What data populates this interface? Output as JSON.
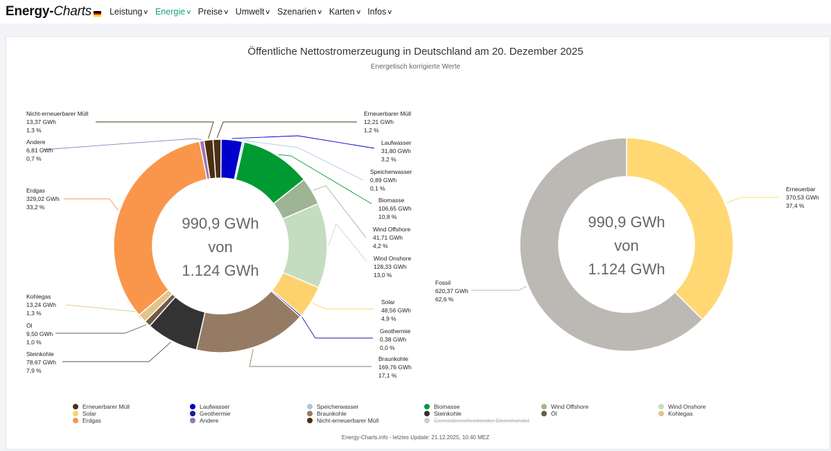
{
  "brand": {
    "name_a": "Energy-",
    "name_b": "Charts"
  },
  "nav": [
    {
      "label": "Leistung",
      "active": false
    },
    {
      "label": "Energie",
      "active": true
    },
    {
      "label": "Preise",
      "active": false
    },
    {
      "label": "Umwelt",
      "active": false
    },
    {
      "label": "Szenarien",
      "active": false
    },
    {
      "label": "Karten",
      "active": false
    },
    {
      "label": "Infos",
      "active": false
    }
  ],
  "footer": "Energy-Charts.info - letztes Update: 21.12.2025, 10:40 MEZ",
  "chart_data": [
    {
      "type": "pie",
      "title": "Öffentliche Nettostromerzeugung in Deutschland am 20. Dezember 2025",
      "subtitle": "Energetisch korrigierte Werte",
      "center": [
        "990,9 GWh",
        "von",
        "1.124 GWh"
      ],
      "slices": [
        {
          "name": "Erneuerbarer Müll",
          "value": 12.21,
          "value_label": "12,21 GWh",
          "pct_label": "1,2 %",
          "color": "#4a3019"
        },
        {
          "name": "Laufwasser",
          "value": 31.8,
          "value_label": "31,80 GWh",
          "pct_label": "3,2 %",
          "color": "#0000cc"
        },
        {
          "name": "Speicherwasser",
          "value": 0.89,
          "value_label": "0,89 GWh",
          "pct_label": "0,1 %",
          "color": "#a9c5e8"
        },
        {
          "name": "Biomasse",
          "value": 106.65,
          "value_label": "106,65 GWh",
          "pct_label": "10,8 %",
          "color": "#009a32"
        },
        {
          "name": "Wind Offshore",
          "value": 41.71,
          "value_label": "41,71 GWh",
          "pct_label": "4,2 %",
          "color": "#9eb494"
        },
        {
          "name": "Wind Onshore",
          "value": 128.33,
          "value_label": "128,33 GWh",
          "pct_label": "13,0 %",
          "color": "#c4dcbf"
        },
        {
          "name": "Solar",
          "value": 48.56,
          "value_label": "48,56 GWh",
          "pct_label": "4,9 %",
          "color": "#fdd26e"
        },
        {
          "name": "Geothermie",
          "value": 0.38,
          "value_label": "0,38 GWh",
          "pct_label": "0,0 %",
          "color": "#1d1d8c"
        },
        {
          "name": "Braunkohle",
          "value": 169.76,
          "value_label": "169,76 GWh",
          "pct_label": "17,1 %",
          "color": "#957b64"
        },
        {
          "name": "Steinkohle",
          "value": 78.67,
          "value_label": "78,67 GWh",
          "pct_label": "7,9 %",
          "color": "#333333"
        },
        {
          "name": "Öl",
          "value": 9.5,
          "value_label": "9,50 GWh",
          "pct_label": "1,0 %",
          "color": "#6e5a45"
        },
        {
          "name": "Kohlegas",
          "value": 13.24,
          "value_label": "13,24 GWh",
          "pct_label": "1,3 %",
          "color": "#e2c48b"
        },
        {
          "name": "Erdgas",
          "value": 329.02,
          "value_label": "329,02 GWh",
          "pct_label": "33,2 %",
          "color": "#f9964b"
        },
        {
          "name": "Andere",
          "value": 6.81,
          "value_label": "6,81 GWh",
          "pct_label": "0,7 %",
          "color": "#9b77b6"
        },
        {
          "name": "Nicht-erneuerbarer Müll",
          "value": 13.37,
          "value_label": "13,37 GWh",
          "pct_label": "1,3 %",
          "color": "#4d2f10"
        }
      ]
    },
    {
      "type": "pie",
      "center": [
        "990,9 GWh",
        "von",
        "1.124 GWh"
      ],
      "slices": [
        {
          "name": "Erneuerbar",
          "value": 370.53,
          "value_label": "370,53 GWh",
          "pct_label": "37,4 %",
          "color": "#ffd873"
        },
        {
          "name": "Fossil",
          "value": 620.37,
          "value_label": "620,37 GWh",
          "pct_label": "62,6 %",
          "color": "#bcb8b4"
        }
      ]
    }
  ],
  "legend": [
    {
      "name": "Erneuerbarer Müll",
      "color": "#4a3019",
      "hidden": false
    },
    {
      "name": "Laufwasser",
      "color": "#0000cc",
      "hidden": false
    },
    {
      "name": "Speicherwasser",
      "color": "#a9c5e8",
      "hidden": false
    },
    {
      "name": "Biomasse",
      "color": "#009a32",
      "hidden": false
    },
    {
      "name": "Wind Offshore",
      "color": "#9eb494",
      "hidden": false
    },
    {
      "name": "Wind Onshore",
      "color": "#c4dcbf",
      "hidden": false
    },
    {
      "name": "Solar",
      "color": "#fdd26e",
      "hidden": false
    },
    {
      "name": "Geothermie",
      "color": "#1d1d8c",
      "hidden": false
    },
    {
      "name": "Braunkohle",
      "color": "#957b64",
      "hidden": false
    },
    {
      "name": "Steinkohle",
      "color": "#333333",
      "hidden": false
    },
    {
      "name": "Öl",
      "color": "#6e5a45",
      "hidden": false
    },
    {
      "name": "Kohlegas",
      "color": "#e2c48b",
      "hidden": false
    },
    {
      "name": "Erdgas",
      "color": "#f9964b",
      "hidden": false
    },
    {
      "name": "Andere",
      "color": "#9b77b6",
      "hidden": false
    },
    {
      "name": "Nicht-erneuerbarer Müll",
      "color": "#4d2f10",
      "hidden": false
    },
    {
      "name": "Grenzüberschreitender Stromhandel",
      "color": "#cccccc",
      "hidden": true
    }
  ]
}
